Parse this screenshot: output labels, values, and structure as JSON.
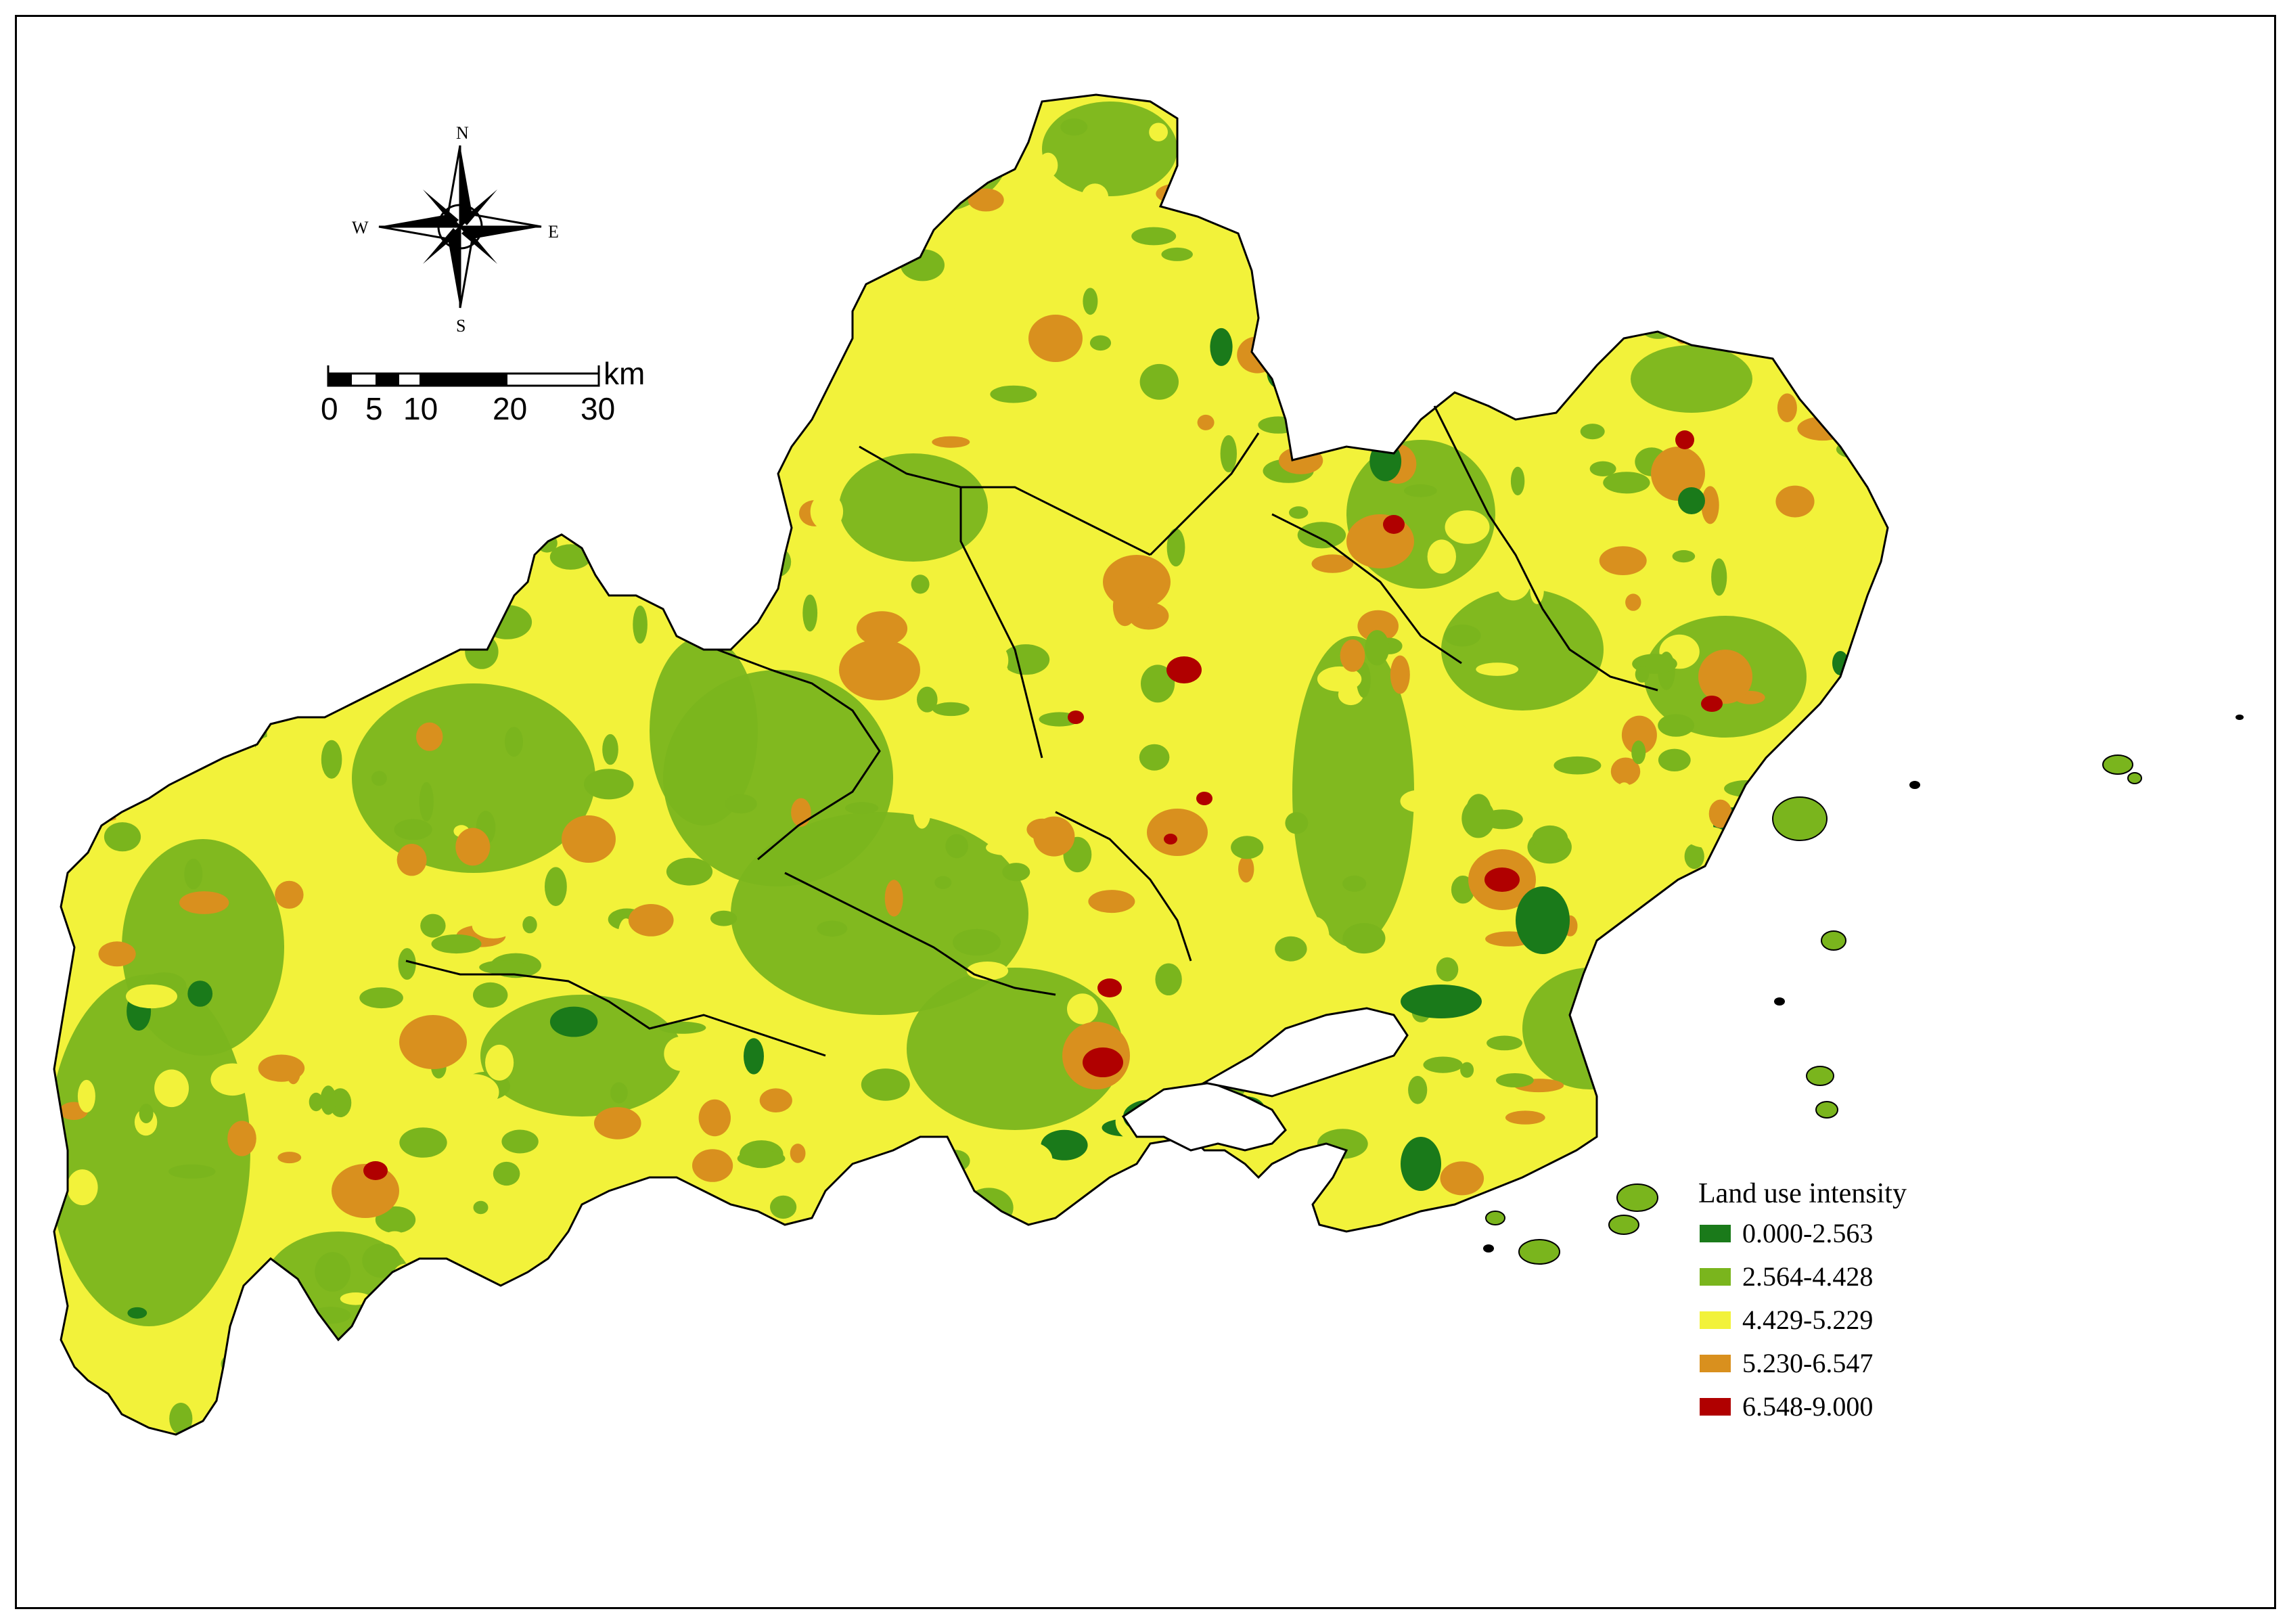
{
  "map": {
    "compass": {
      "north": "N",
      "south": "S",
      "east": "E",
      "west": "W"
    },
    "scale_bar": {
      "unit": "km",
      "ticks": [
        "0",
        "5",
        "10",
        "20",
        "30"
      ]
    },
    "legend": {
      "title": "Land use intensity",
      "classes": [
        {
          "label": "0.000-2.563",
          "color": "#1a7a1a"
        },
        {
          "label": "2.564-4.428",
          "color": "#7ab51d"
        },
        {
          "label": "4.429-5.229",
          "color": "#f2f23a"
        },
        {
          "label": "5.230-6.547",
          "color": "#d9901e"
        },
        {
          "label": "6.548-9.000",
          "color": "#b00000"
        }
      ]
    }
  }
}
